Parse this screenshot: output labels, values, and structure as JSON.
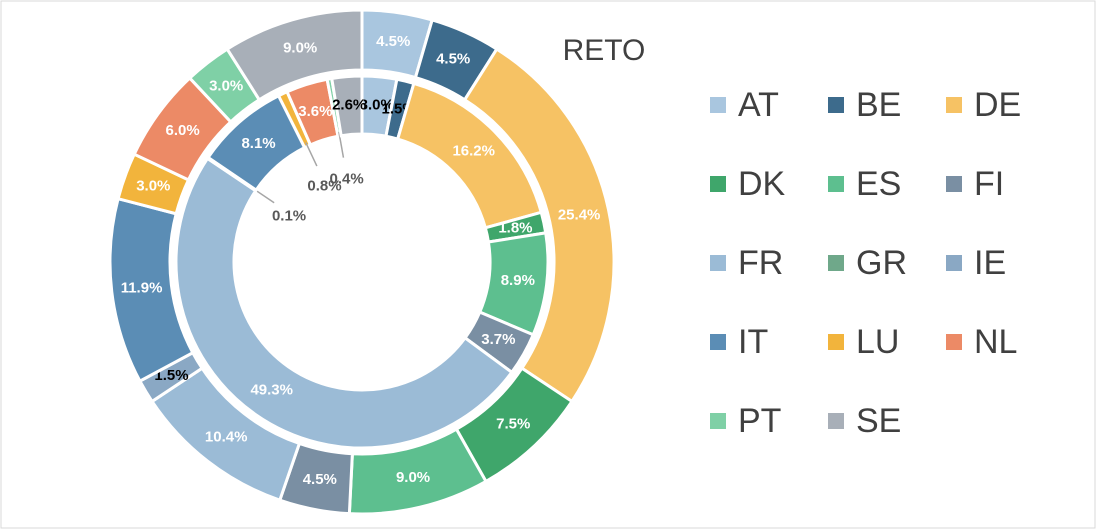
{
  "chart_data": {
    "type": "donut",
    "title": "RETO",
    "categories": [
      "AT",
      "BE",
      "DE",
      "DK",
      "ES",
      "FI",
      "FR",
      "GR",
      "IE",
      "IT",
      "LU",
      "NL",
      "PT",
      "SE"
    ],
    "colors": [
      "#a9c6df",
      "#3d6b8c",
      "#f6c264",
      "#3fa66b",
      "#5dbf8f",
      "#7a8fa3",
      "#9bbbd6",
      "#6fa88a",
      "#8aa8c4",
      "#5b8db5",
      "#f2b43c",
      "#ec8a66",
      "#7fd0a6",
      "#a8afb8"
    ],
    "rings": [
      {
        "values": [
          3.0,
          1.5,
          16.2,
          1.8,
          8.9,
          3.7,
          49.3,
          0.1,
          0,
          8.1,
          0.8,
          3.6,
          0.4,
          2.6
        ],
        "value_labels": [
          "3.0%",
          "1.5%",
          "16.2%",
          "1.8%",
          "8.9%",
          "3.7%",
          "49.3%",
          "0.1%",
          null,
          "8.1%",
          "0.8%",
          "3.6%",
          "0.4%",
          "2.6%"
        ]
      },
      {
        "values": [
          4.5,
          4.5,
          25.4,
          7.5,
          9.0,
          4.5,
          10.4,
          0,
          1.5,
          11.9,
          3.0,
          6.0,
          3.0,
          9.0
        ],
        "value_labels": [
          "4.5%",
          "4.5%",
          "25.4%",
          "7.5%",
          "9.0%",
          "4.5%",
          "10.4%",
          null,
          "1.5%",
          "11.9%",
          "3.0%",
          "6.0%",
          "3.0%",
          "9.0%"
        ]
      }
    ]
  }
}
